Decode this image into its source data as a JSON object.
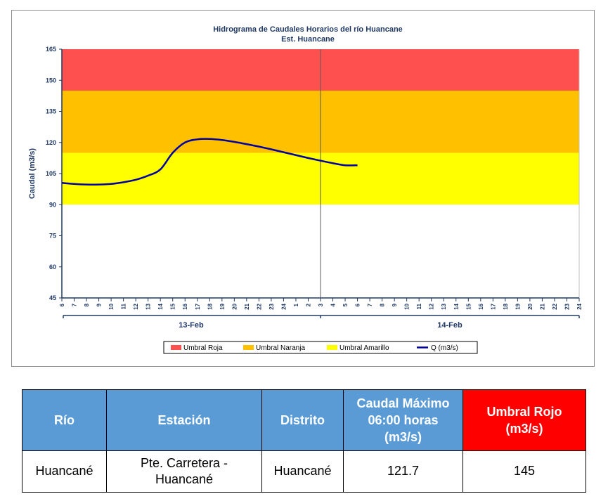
{
  "chart_data": {
    "type": "line",
    "title": "Hidrograma de Caudales Horarios del río Huancane",
    "subtitle": "Est. Huancane",
    "ylabel": "Caudal  (m3/s)",
    "ylim": [
      45,
      165
    ],
    "yticks": [
      "45",
      "60",
      "75",
      "90",
      "105",
      "120",
      "135",
      "150",
      "165"
    ],
    "x_hour_labels": [
      "6",
      "7",
      "8",
      "9",
      "10",
      "11",
      "12",
      "13",
      "14",
      "15",
      "16",
      "17",
      "18",
      "19",
      "20",
      "21",
      "22",
      "23",
      "24",
      "1",
      "2",
      "3",
      "4",
      "5",
      "6",
      "7",
      "8",
      "9",
      "10",
      "11",
      "12",
      "13",
      "14",
      "15",
      "16",
      "17",
      "18",
      "19",
      "20",
      "21",
      "22",
      "23",
      "24"
    ],
    "day_labels": [
      "13-Feb",
      "14-Feb"
    ],
    "bands": [
      {
        "name": "Umbral Roja",
        "from": 145,
        "to": 165,
        "color": "#ff5050"
      },
      {
        "name": "Umbral Naranja",
        "from": 115,
        "to": 145,
        "color": "#ffc000"
      },
      {
        "name": "Umbral Amarillo",
        "from": 90,
        "to": 115,
        "color": "#ffff00"
      }
    ],
    "series": [
      {
        "name": "Q (m3/s)",
        "color": "#0000a0",
        "x": [
          0,
          1,
          2,
          3,
          4,
          5,
          6,
          7,
          8,
          9,
          10,
          11,
          12,
          13,
          14,
          15,
          16,
          17,
          18,
          19,
          20,
          21,
          22,
          23,
          24
        ],
        "values": [
          100.5,
          100.0,
          99.7,
          99.7,
          100.0,
          100.8,
          102.0,
          104.0,
          107.0,
          115.0,
          120.0,
          121.5,
          121.7,
          121.2,
          120.3,
          119.2,
          118.0,
          116.7,
          115.3,
          113.9,
          112.5,
          111.2,
          110.0,
          109.0,
          109.0
        ]
      }
    ],
    "legend": [
      "Umbral Roja",
      "Umbral Naranja",
      "Umbral Amarillo",
      "Q (m3/s)"
    ],
    "legend_position": "bottom",
    "grid": false
  },
  "table": {
    "headers": [
      "Río",
      "Estación",
      "Distrito",
      "Caudal Máximo 06:00 horas (m3/s)",
      "Umbral Rojo (m3/s)"
    ],
    "row": [
      "Huancané",
      "Pte. Carretera - Huancané",
      "Huancané",
      "121.7",
      "145"
    ]
  }
}
